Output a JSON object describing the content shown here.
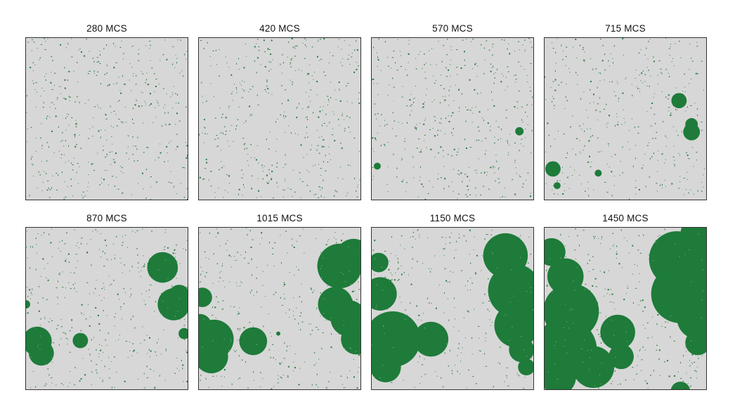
{
  "colors": {
    "background": "#d7d7d7",
    "domain": "#1e7b3a",
    "speck": "#2a7a3f",
    "frame": "#333333"
  },
  "panels": [
    {
      "label": "280 MCS",
      "noise": 0.008
    },
    {
      "label": "420 MCS",
      "noise": 0.008
    },
    {
      "label": "570 MCS",
      "noise": 0.008
    },
    {
      "label": "715 MCS",
      "noise": 0.007
    },
    {
      "label": "870 MCS",
      "noise": 0.007
    },
    {
      "label": "1015 MCS",
      "noise": 0.006
    },
    {
      "label": "1150 MCS",
      "noise": 0.006
    },
    {
      "label": "1450 MCS",
      "noise": 0.006
    }
  ]
}
